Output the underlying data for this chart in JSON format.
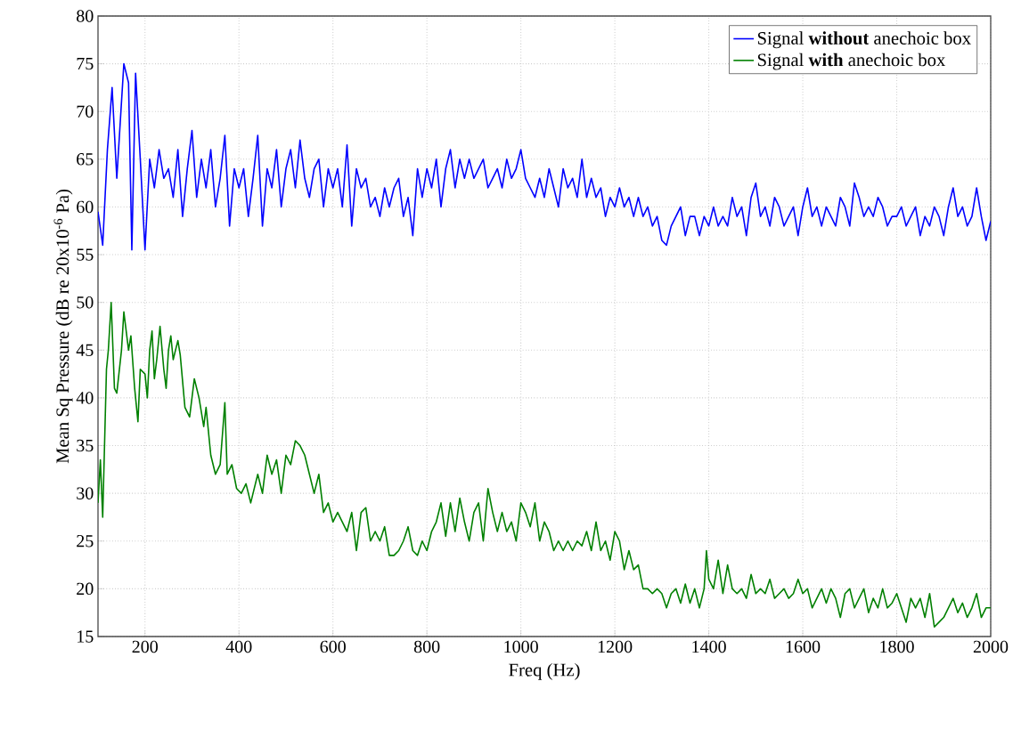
{
  "chart_data": {
    "type": "line",
    "xlabel": "Freq (Hz)",
    "ylabel": "Mean Sq Pressure (dB re 20x10$^{-6}$ Pa)",
    "xlim": [
      100,
      2000
    ],
    "ylim": [
      15,
      80
    ],
    "xticks": [
      200,
      400,
      600,
      800,
      1000,
      1200,
      1400,
      1600,
      1800,
      2000
    ],
    "yticks": [
      15,
      20,
      25,
      30,
      35,
      40,
      45,
      50,
      55,
      60,
      65,
      70,
      75,
      80
    ],
    "grid": true,
    "legend": "top right",
    "marker": "none",
    "line_style": "solid",
    "series": [
      {
        "name": "Signal **without** anechoic box",
        "color": "#0000ff",
        "x": [
          100,
          110,
          120,
          130,
          140,
          155,
          165,
          172,
          180,
          190,
          200,
          210,
          220,
          230,
          240,
          250,
          260,
          270,
          280,
          290,
          300,
          310,
          320,
          330,
          340,
          350,
          360,
          370,
          380,
          390,
          400,
          410,
          420,
          430,
          440,
          450,
          460,
          470,
          480,
          490,
          500,
          510,
          520,
          530,
          540,
          550,
          560,
          570,
          580,
          590,
          600,
          610,
          620,
          630,
          640,
          650,
          660,
          670,
          680,
          690,
          700,
          710,
          720,
          730,
          740,
          750,
          760,
          770,
          780,
          790,
          800,
          810,
          820,
          830,
          840,
          850,
          860,
          870,
          880,
          890,
          900,
          910,
          920,
          930,
          940,
          950,
          960,
          970,
          980,
          990,
          1000,
          1010,
          1020,
          1030,
          1040,
          1050,
          1060,
          1070,
          1080,
          1090,
          1100,
          1110,
          1120,
          1130,
          1140,
          1150,
          1160,
          1170,
          1180,
          1190,
          1200,
          1210,
          1220,
          1230,
          1240,
          1250,
          1260,
          1270,
          1280,
          1290,
          1300,
          1310,
          1320,
          1330,
          1340,
          1350,
          1360,
          1370,
          1380,
          1390,
          1400,
          1410,
          1420,
          1430,
          1440,
          1450,
          1460,
          1470,
          1480,
          1490,
          1500,
          1510,
          1520,
          1530,
          1540,
          1550,
          1560,
          1570,
          1580,
          1590,
          1600,
          1610,
          1620,
          1630,
          1640,
          1650,
          1660,
          1670,
          1680,
          1690,
          1700,
          1710,
          1720,
          1730,
          1740,
          1750,
          1760,
          1770,
          1780,
          1790,
          1800,
          1810,
          1820,
          1830,
          1840,
          1850,
          1860,
          1870,
          1880,
          1890,
          1900,
          1910,
          1920,
          1930,
          1940,
          1950,
          1960,
          1970,
          1980,
          1990,
          2000
        ],
        "values": [
          59.5,
          56,
          66,
          72.5,
          63,
          75,
          73,
          55.5,
          74,
          65,
          55.5,
          65,
          62,
          66,
          63,
          64,
          61,
          66,
          59,
          64,
          68,
          61,
          65,
          62,
          66,
          60,
          63,
          67.5,
          58,
          64,
          62,
          64,
          59,
          63,
          67.5,
          58,
          64,
          62,
          66,
          60,
          64,
          66,
          62,
          67,
          63,
          61,
          64,
          65,
          60,
          64,
          62,
          64,
          60,
          66.5,
          58,
          64,
          62,
          63,
          60,
          61,
          59,
          62,
          60,
          62,
          63,
          59,
          61,
          57,
          64,
          61,
          64,
          62,
          65,
          60,
          64,
          66,
          62,
          65,
          63,
          65,
          63,
          64,
          65,
          62,
          63,
          64,
          62,
          65,
          63,
          64,
          66,
          63,
          62,
          61,
          63,
          61,
          64,
          62,
          60,
          64,
          62,
          63,
          61,
          65,
          61,
          63,
          61,
          62,
          59,
          61,
          60,
          62,
          60,
          61,
          59,
          61,
          59,
          60,
          58,
          59,
          56.5,
          56,
          58,
          59,
          60,
          57,
          59,
          59,
          57,
          59,
          58,
          60,
          58,
          59,
          58,
          61,
          59,
          60,
          57,
          61,
          62.5,
          59,
          60,
          58,
          61,
          60,
          58,
          59,
          60,
          57,
          60,
          62,
          59,
          60,
          58,
          60,
          59,
          58,
          61,
          60,
          58,
          62.5,
          61,
          59,
          60,
          59,
          61,
          60,
          58,
          59,
          59,
          60,
          58,
          59,
          60,
          57,
          59,
          58,
          60,
          59,
          57,
          60,
          62,
          59,
          60,
          58,
          59,
          62,
          59,
          56.5,
          58.5
        ]
      },
      {
        "name": "Signal **with** anechoic box",
        "color": "#008000",
        "x": [
          100,
          105,
          110,
          118,
          122,
          128,
          135,
          140,
          150,
          155,
          165,
          170,
          178,
          185,
          190,
          200,
          205,
          210,
          215,
          220,
          225,
          232,
          240,
          245,
          250,
          255,
          260,
          270,
          275,
          285,
          295,
          305,
          315,
          325,
          330,
          340,
          350,
          360,
          370,
          375,
          385,
          395,
          405,
          415,
          425,
          430,
          440,
          450,
          460,
          470,
          480,
          490,
          500,
          510,
          520,
          530,
          540,
          550,
          560,
          570,
          580,
          590,
          600,
          610,
          620,
          630,
          640,
          650,
          660,
          670,
          680,
          690,
          700,
          710,
          720,
          730,
          740,
          750,
          760,
          770,
          780,
          790,
          800,
          810,
          820,
          830,
          840,
          850,
          860,
          870,
          880,
          890,
          900,
          910,
          920,
          930,
          940,
          950,
          960,
          970,
          980,
          990,
          1000,
          1010,
          1020,
          1030,
          1040,
          1050,
          1060,
          1070,
          1080,
          1090,
          1100,
          1110,
          1120,
          1130,
          1140,
          1150,
          1160,
          1170,
          1180,
          1190,
          1200,
          1210,
          1220,
          1230,
          1240,
          1250,
          1260,
          1270,
          1280,
          1290,
          1300,
          1310,
          1320,
          1330,
          1340,
          1350,
          1360,
          1370,
          1380,
          1390,
          1395,
          1400,
          1410,
          1420,
          1430,
          1440,
          1450,
          1460,
          1470,
          1480,
          1490,
          1500,
          1510,
          1520,
          1530,
          1540,
          1550,
          1560,
          1570,
          1580,
          1590,
          1600,
          1610,
          1620,
          1630,
          1640,
          1650,
          1660,
          1670,
          1680,
          1690,
          1700,
          1710,
          1720,
          1730,
          1740,
          1750,
          1760,
          1770,
          1780,
          1790,
          1800,
          1810,
          1820,
          1830,
          1840,
          1850,
          1860,
          1870,
          1880,
          1890,
          1900,
          1910,
          1920,
          1930,
          1940,
          1950,
          1960,
          1970,
          1980,
          1990,
          2000
        ],
        "values": [
          29,
          33.5,
          27.5,
          43,
          45,
          50,
          41,
          40.5,
          45,
          49,
          45,
          46.5,
          41,
          37.5,
          43,
          42.5,
          40,
          45,
          47,
          42,
          44,
          47.5,
          43,
          41,
          45,
          46.5,
          44,
          46,
          44.5,
          39,
          38,
          42,
          40,
          37,
          39,
          34,
          32,
          33,
          39.5,
          32,
          33,
          30.5,
          30,
          31,
          29,
          30,
          32,
          30,
          34,
          32,
          33.5,
          30,
          34,
          33,
          35.5,
          35,
          34,
          32,
          30,
          32,
          28,
          29,
          27,
          28,
          27,
          26,
          28,
          24,
          28,
          28.5,
          25,
          26,
          25,
          26.5,
          23.5,
          23.5,
          24,
          25,
          26.5,
          24,
          23.5,
          25,
          24,
          26,
          27,
          29,
          25.5,
          29,
          26,
          29.5,
          27,
          25,
          28,
          29,
          25,
          30.5,
          28,
          26,
          28,
          26,
          27,
          25,
          29,
          28,
          26.5,
          29,
          25,
          27,
          26,
          24,
          25,
          24,
          25,
          24,
          25,
          24.5,
          26,
          24,
          27,
          24,
          25,
          23,
          26,
          25,
          22,
          24,
          22,
          22.5,
          20,
          20,
          19.5,
          20,
          19.5,
          18,
          19.5,
          20,
          18.5,
          20.5,
          18.5,
          20,
          18,
          20,
          24,
          21,
          20,
          23,
          19.5,
          22.5,
          20,
          19.5,
          20,
          19,
          21.5,
          19.5,
          20,
          19.5,
          21,
          19,
          19.5,
          20,
          19,
          19.5,
          21,
          19.5,
          20,
          18,
          19,
          20,
          18.5,
          20,
          19,
          17,
          19.5,
          20,
          18,
          19,
          20,
          17.5,
          19,
          18,
          20,
          18,
          18.5,
          19.5,
          18,
          16.5,
          19,
          18,
          19,
          17,
          19.5,
          16,
          16.5,
          17,
          18,
          19,
          17.5,
          18.5,
          17,
          18,
          19.5,
          17,
          18,
          18
        ]
      }
    ]
  }
}
